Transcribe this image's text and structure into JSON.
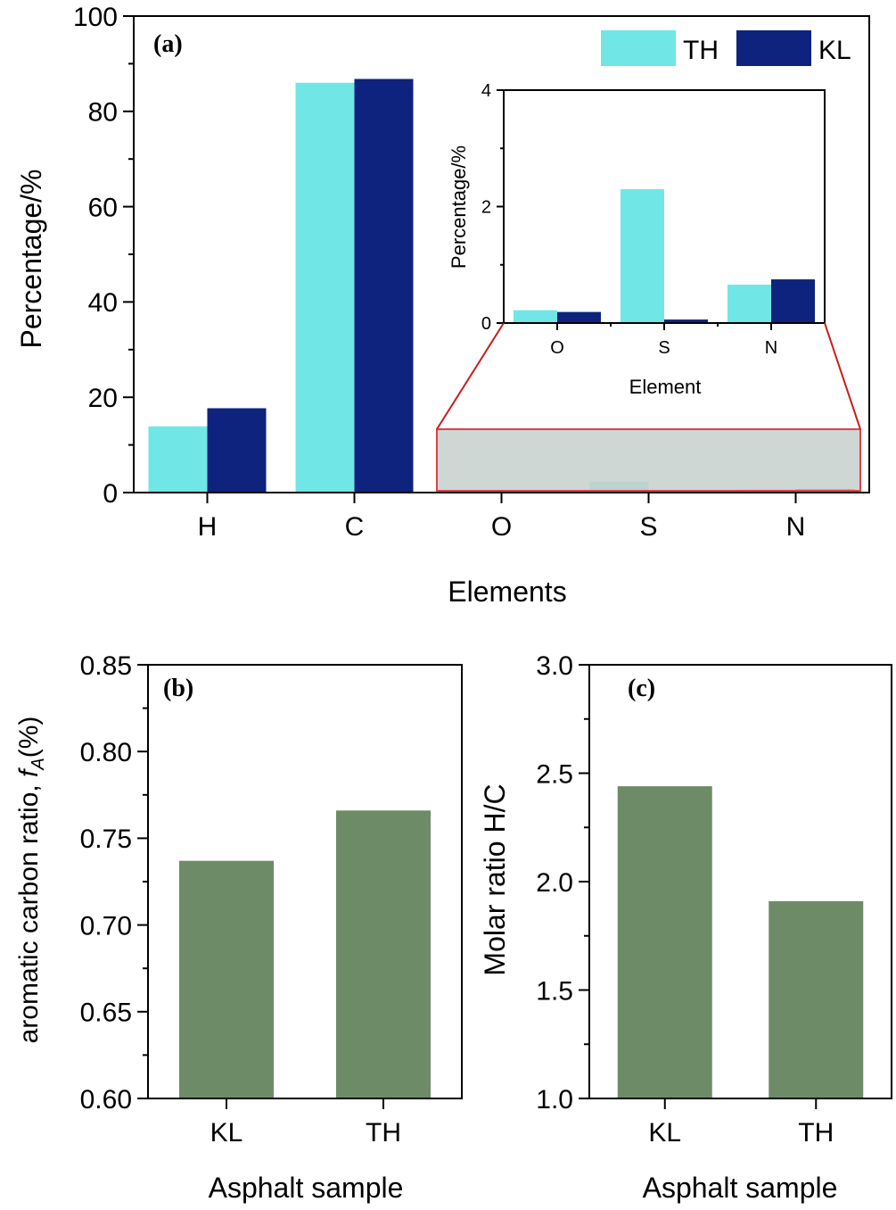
{
  "colors": {
    "th": "#70e6e6",
    "kl": "#0d237d",
    "bar": "#6e8b68",
    "zoom_fill": "#c6d0cd",
    "zoom_stroke": "#e0424b",
    "zoom_line": "#c81e1e"
  },
  "chart_data": [
    {
      "id": "a",
      "type": "bar",
      "panel_label": "(a)",
      "title": "",
      "xlabel": "Elements",
      "ylabel": "Percentage/%",
      "categories": [
        "H",
        "C",
        "O",
        "S",
        "N"
      ],
      "series": [
        {
          "name": "TH",
          "values": [
            13.9,
            86.0,
            0.22,
            2.3,
            0.66
          ]
        },
        {
          "name": "KL",
          "values": [
            17.7,
            86.8,
            0.19,
            0.06,
            0.75
          ]
        }
      ],
      "ylim": [
        0,
        100
      ],
      "yticks": [
        "0",
        "20",
        "40",
        "60",
        "80",
        "100"
      ],
      "legend": "top-right",
      "inset": {
        "type": "bar",
        "xlabel": "Element",
        "ylabel": "Percentage/%",
        "categories": [
          "O",
          "S",
          "N"
        ],
        "series": [
          {
            "name": "TH",
            "values": [
              0.22,
              2.3,
              0.66
            ]
          },
          {
            "name": "KL",
            "values": [
              0.19,
              0.06,
              0.75
            ]
          }
        ],
        "ylim": [
          0,
          4
        ],
        "yticks": [
          "0",
          "2",
          "4"
        ]
      }
    },
    {
      "id": "b",
      "type": "bar",
      "panel_label": "(b)",
      "xlabel": "Asphalt sample",
      "ylabel_main": "aromatic carbon ratio, ",
      "ylabel_italic": "f",
      "ylabel_sub": "A",
      "ylabel_end": "(%)",
      "categories": [
        "KL",
        "TH"
      ],
      "values": [
        0.737,
        0.766
      ],
      "ylim": [
        0.6,
        0.85
      ],
      "yticks": [
        "0.60",
        "0.65",
        "0.70",
        "0.75",
        "0.80",
        "0.85"
      ]
    },
    {
      "id": "c",
      "type": "bar",
      "panel_label": "(c)",
      "xlabel": "Asphalt sample",
      "ylabel": "Molar ratio H/C",
      "categories": [
        "KL",
        "TH"
      ],
      "values": [
        2.44,
        1.91
      ],
      "ylim": [
        1.0,
        3.0
      ],
      "yticks": [
        "1.0",
        "1.5",
        "2.0",
        "2.5",
        "3.0"
      ]
    }
  ]
}
